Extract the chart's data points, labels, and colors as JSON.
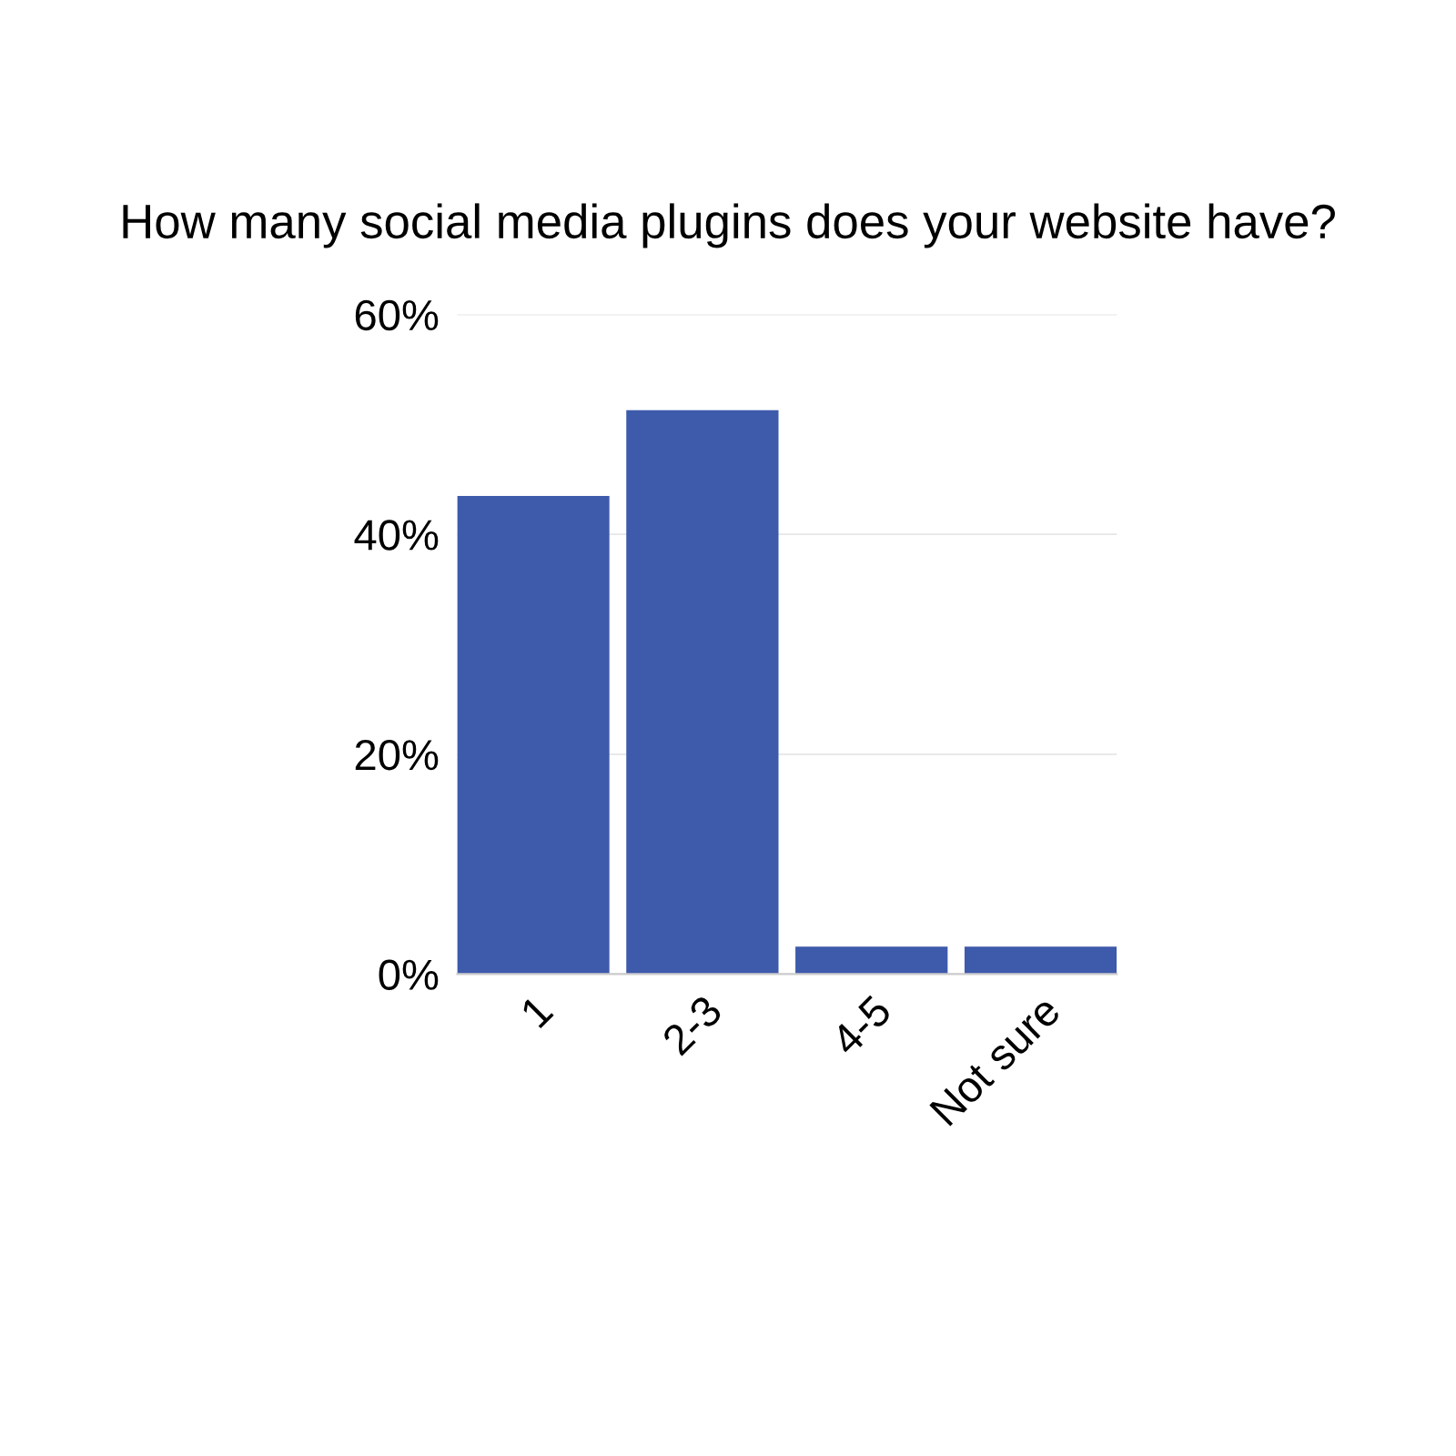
{
  "chart_data": {
    "type": "bar",
    "title": "How many social media plugins does your website have?",
    "categories": [
      "1",
      "2-3",
      "4-5",
      "Not sure"
    ],
    "values": [
      43.5,
      51.3,
      2.5,
      2.5
    ],
    "color": "#3d5aab",
    "ylim": [
      0,
      60
    ],
    "yticks": [
      {
        "value": 0,
        "label": "0%"
      },
      {
        "value": 20,
        "label": "20%"
      },
      {
        "value": 40,
        "label": "40%"
      },
      {
        "value": 60,
        "label": "60%"
      }
    ],
    "grid": "y",
    "legend": false
  }
}
